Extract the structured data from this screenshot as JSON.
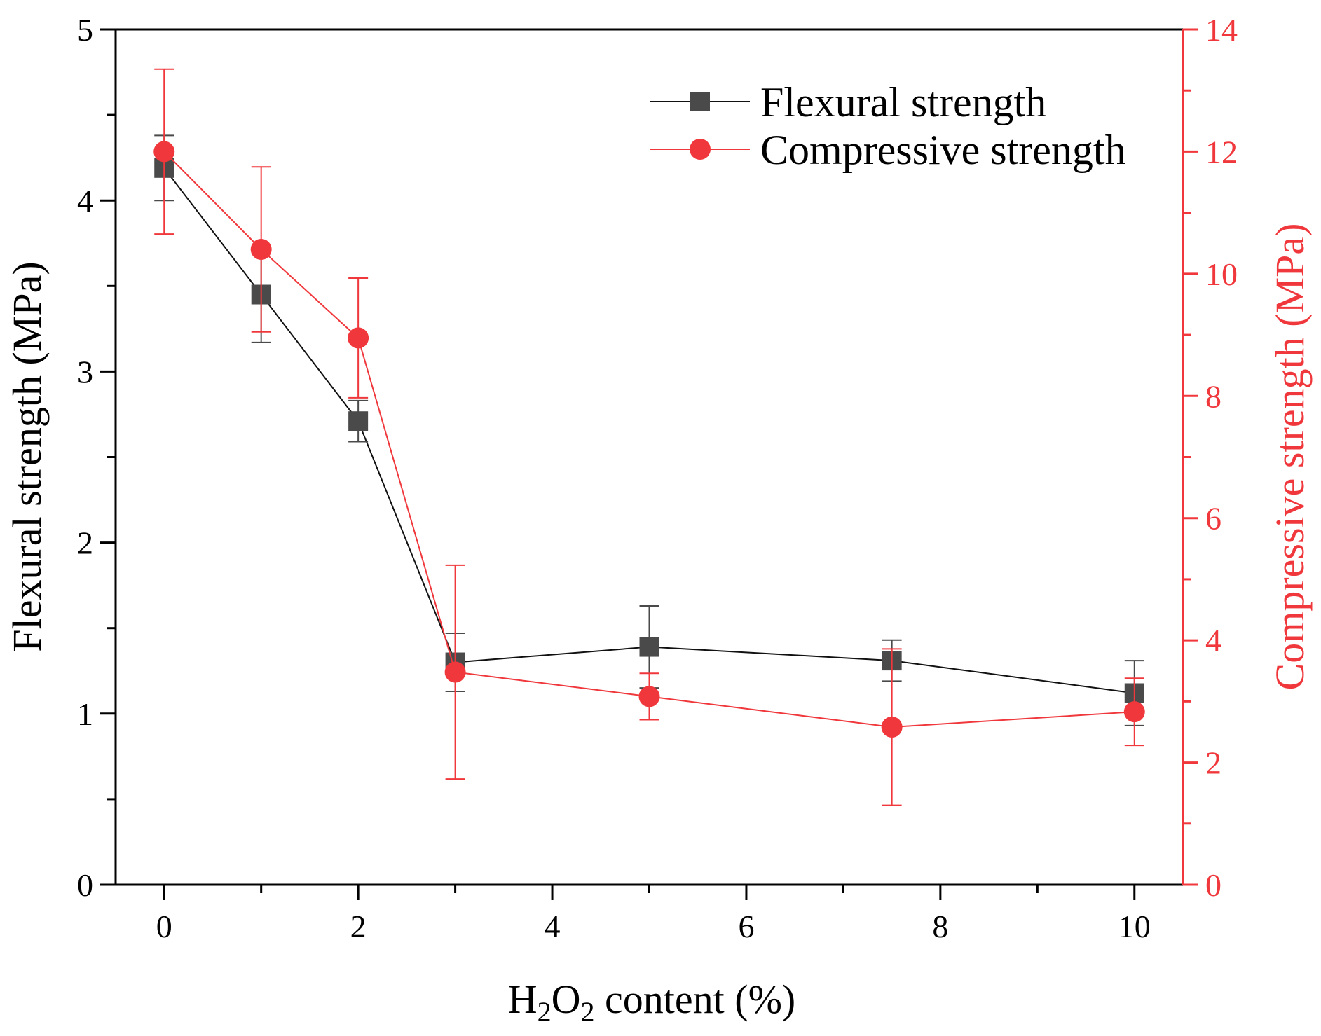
{
  "colors": {
    "flexural": "#4a4a4a",
    "flexural_line": "#111111",
    "compressive": "#f0383c",
    "axis_left": "#000000",
    "axis_right": "#f0383c"
  },
  "chart_data": {
    "type": "line",
    "xlabel_prefix": "H",
    "xlabel_sub1": "2",
    "xlabel_mid": "O",
    "xlabel_sub2": "2",
    "xlabel_suffix": " content (%)",
    "ylabel_left": "Flexural strength (MPa)",
    "ylabel_right": "Compressive strength (MPa)",
    "xlim": [
      -0.5,
      10.5
    ],
    "ylim_left": [
      0,
      5
    ],
    "ylim_right": [
      0,
      14
    ],
    "xticks": [
      0,
      2,
      4,
      6,
      8,
      10
    ],
    "xtick_labels": [
      "0",
      "2",
      "4",
      "6",
      "8",
      "10"
    ],
    "yticks_left": [
      0,
      1,
      2,
      3,
      4,
      5
    ],
    "ytick_labels_left": [
      "0",
      "1",
      "2",
      "3",
      "4",
      "5"
    ],
    "yticks_right": [
      0,
      2,
      4,
      6,
      8,
      10,
      12,
      14
    ],
    "ytick_labels_right": [
      "0",
      "2",
      "4",
      "6",
      "8",
      "10",
      "12",
      "14"
    ],
    "x": [
      0,
      1,
      2,
      3,
      5,
      7.5,
      10
    ],
    "series": [
      {
        "name": "Flexural strength",
        "axis": "left",
        "marker": "square",
        "values": [
          4.19,
          3.45,
          2.71,
          1.3,
          1.39,
          1.31,
          1.12
        ],
        "error": [
          0.19,
          0.28,
          0.12,
          0.17,
          0.24,
          0.12,
          0.19
        ]
      },
      {
        "name": "Compressive strength",
        "axis": "right",
        "marker": "circle",
        "values": [
          12.0,
          10.4,
          8.95,
          3.48,
          3.08,
          2.58,
          2.83
        ],
        "error": [
          1.35,
          1.35,
          0.98,
          1.75,
          0.38,
          1.28,
          0.55
        ]
      }
    ],
    "legend_position": "top-right"
  }
}
